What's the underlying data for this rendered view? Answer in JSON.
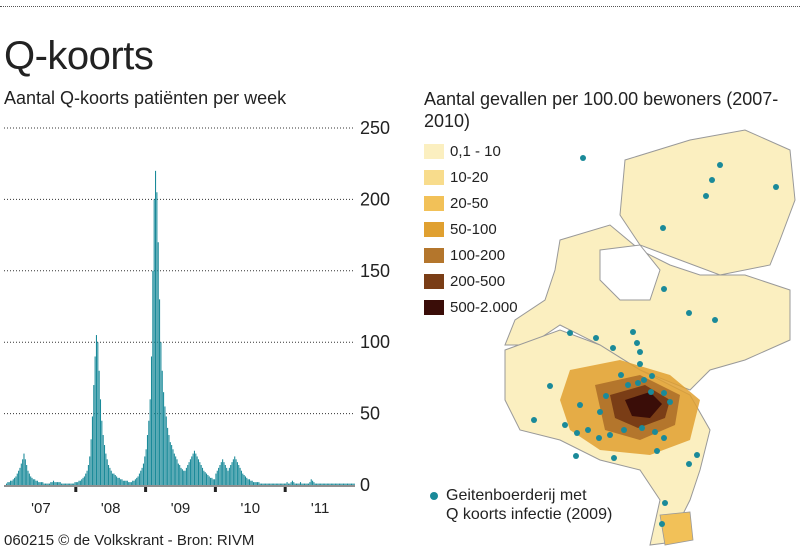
{
  "title": "Q-koorts",
  "credit": "060215 © de Volkskrant - Bron: RIVM",
  "map": {
    "title": "Aantal gevallen per 100.00 bewoners (2007-2010)",
    "legend": [
      {
        "label": "0,1 - 10",
        "color": "#fbefc0"
      },
      {
        "label": "10-20",
        "color": "#f8dc8c"
      },
      {
        "label": "20-50",
        "color": "#f2c158"
      },
      {
        "label": "50-100",
        "color": "#e0a030"
      },
      {
        "label": "100-200",
        "color": "#b4762c"
      },
      {
        "label": "200-500",
        "color": "#7a3d16"
      },
      {
        "label": "500-2.000",
        "color": "#3a0d08"
      }
    ],
    "note_line1": "Geitenboerderij met",
    "note_line2": "Q koorts infectie (2009)",
    "farm_color": "#1a8a99"
  },
  "chart_data": {
    "type": "bar",
    "title": "Aantal Q-koorts patiënten per week",
    "ylim": [
      0,
      250
    ],
    "yticks": [
      0,
      50,
      100,
      150,
      200,
      250
    ],
    "xticks": [
      "'07",
      "'08",
      "'09",
      "'10",
      "'11"
    ],
    "grid": true,
    "color": "#1a8a99",
    "series": [
      {
        "x": "'07",
        "values": [
          1,
          2,
          2,
          3,
          3,
          4,
          5,
          6,
          8,
          10,
          12,
          15,
          18,
          22,
          18,
          14,
          10,
          8,
          6,
          5,
          4,
          4,
          3,
          3,
          2,
          2,
          2,
          2,
          1,
          1,
          1,
          1,
          1,
          2,
          2,
          3,
          2,
          2,
          2,
          2,
          2,
          1,
          1,
          1,
          1,
          1,
          1,
          1,
          1,
          1,
          1,
          2
        ]
      },
      {
        "x": "'08",
        "values": [
          2,
          2,
          3,
          3,
          4,
          5,
          6,
          8,
          10,
          14,
          20,
          32,
          48,
          70,
          90,
          105,
          100,
          80,
          60,
          45,
          35,
          28,
          22,
          18,
          14,
          12,
          10,
          8,
          8,
          7,
          6,
          5,
          5,
          4,
          4,
          3,
          3,
          3,
          3,
          2,
          2,
          2,
          3,
          3,
          4,
          5,
          6,
          8,
          10,
          12,
          15,
          20
        ]
      },
      {
        "x": "'09",
        "values": [
          25,
          35,
          45,
          60,
          90,
          150,
          200,
          220,
          205,
          170,
          130,
          100,
          80,
          65,
          55,
          48,
          40,
          35,
          30,
          28,
          25,
          22,
          20,
          18,
          15,
          14,
          12,
          11,
          10,
          10,
          12,
          14,
          16,
          18,
          20,
          22,
          24,
          22,
          20,
          18,
          16,
          14,
          12,
          10,
          9,
          8,
          7,
          6,
          5,
          5,
          4,
          4
        ]
      },
      {
        "x": "'10",
        "values": [
          8,
          10,
          12,
          14,
          16,
          18,
          16,
          14,
          12,
          10,
          12,
          14,
          16,
          18,
          20,
          18,
          16,
          14,
          12,
          10,
          8,
          7,
          6,
          5,
          4,
          4,
          3,
          3,
          2,
          2,
          2,
          2,
          2,
          1,
          1,
          1,
          1,
          1,
          1,
          1,
          1,
          1,
          1,
          1,
          1,
          1,
          1,
          1,
          1,
          1,
          1,
          1
        ]
      },
      {
        "x": "'11",
        "values": [
          1,
          2,
          1,
          1,
          2,
          3,
          2,
          1,
          1,
          1,
          1,
          2,
          1,
          1,
          1,
          1,
          1,
          1,
          2,
          4,
          3,
          2,
          1,
          1,
          1,
          1,
          1,
          1,
          1,
          1,
          1,
          1,
          1,
          1,
          1,
          1,
          1,
          1,
          1,
          1,
          1,
          1,
          1,
          1,
          1,
          1,
          1,
          1,
          1,
          1,
          1,
          1
        ]
      }
    ]
  }
}
